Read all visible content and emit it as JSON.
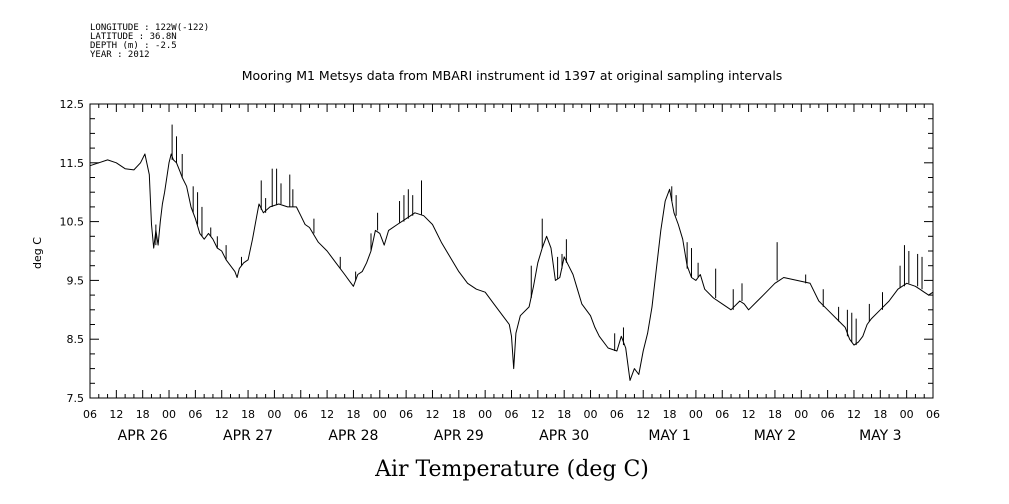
{
  "header": {
    "meta_lines": [
      "LONGITUDE : 122W(-122)",
      "LATITUDE : 36.8N",
      "DEPTH (m) : -2.5",
      "YEAR : 2012"
    ]
  },
  "chart_data": {
    "type": "line",
    "title": "Mooring M1 Metsys data from MBARI instrument id 1397 at original sampling intervals",
    "xlabel": "Air Temperature (deg C)",
    "ylabel": "deg C",
    "ylim": [
      7.5,
      12.5
    ],
    "yticks": [
      "7.5",
      "8.5",
      "9.5",
      "10.5",
      "11.5",
      "12.5"
    ],
    "x_units": "hours since APR 26 00:00 (2012)",
    "xlim": [
      -18,
      174
    ],
    "hour_ticks": [
      {
        "h": -18,
        "label": "06"
      },
      {
        "h": -12,
        "label": "12"
      },
      {
        "h": -6,
        "label": "18"
      },
      {
        "h": 0,
        "label": "00"
      },
      {
        "h": 6,
        "label": "06"
      },
      {
        "h": 12,
        "label": "12"
      },
      {
        "h": 18,
        "label": "18"
      },
      {
        "h": 24,
        "label": "00"
      },
      {
        "h": 30,
        "label": "06"
      },
      {
        "h": 36,
        "label": "12"
      },
      {
        "h": 42,
        "label": "18"
      },
      {
        "h": 48,
        "label": "00"
      },
      {
        "h": 54,
        "label": "06"
      },
      {
        "h": 60,
        "label": "12"
      },
      {
        "h": 66,
        "label": "18"
      },
      {
        "h": 72,
        "label": "00"
      },
      {
        "h": 78,
        "label": "06"
      },
      {
        "h": 84,
        "label": "12"
      },
      {
        "h": 90,
        "label": "18"
      },
      {
        "h": 96,
        "label": "00"
      },
      {
        "h": 102,
        "label": "06"
      },
      {
        "h": 108,
        "label": "12"
      },
      {
        "h": 114,
        "label": "18"
      },
      {
        "h": 120,
        "label": "00"
      },
      {
        "h": 126,
        "label": "06"
      },
      {
        "h": 132,
        "label": "12"
      },
      {
        "h": 138,
        "label": "18"
      },
      {
        "h": 144,
        "label": "00"
      },
      {
        "h": 150,
        "label": "06"
      },
      {
        "h": 156,
        "label": "12"
      },
      {
        "h": 162,
        "label": "18"
      },
      {
        "h": 168,
        "label": "00"
      },
      {
        "h": 174,
        "label": "06"
      }
    ],
    "day_labels": [
      {
        "h": -6,
        "label": "APR 26"
      },
      {
        "h": 18,
        "label": "APR 27"
      },
      {
        "h": 42,
        "label": "APR 28"
      },
      {
        "h": 66,
        "label": "APR 29"
      },
      {
        "h": 90,
        "label": "APR 30"
      },
      {
        "h": 114,
        "label": "MAY  1"
      },
      {
        "h": 138,
        "label": "MAY  2"
      },
      {
        "h": 162,
        "label": "MAY  3"
      }
    ],
    "series": [
      {
        "color": "#000000",
        "points": [
          [
            -18,
            11.45
          ],
          [
            -16,
            11.5
          ],
          [
            -14,
            11.55
          ],
          [
            -12,
            11.5
          ],
          [
            -10,
            11.4
          ],
          [
            -8,
            11.38
          ],
          [
            -6.5,
            11.5
          ],
          [
            -5.5,
            11.65
          ],
          [
            -4.5,
            11.3
          ],
          [
            -4,
            10.45
          ],
          [
            -3.5,
            10.05
          ],
          [
            -3,
            10.35
          ],
          [
            -2.5,
            10.1
          ],
          [
            -2,
            10.5
          ],
          [
            -1.5,
            10.8
          ],
          [
            -1,
            11.0
          ],
          [
            0,
            11.5
          ],
          [
            0.5,
            11.65
          ],
          [
            1,
            11.55
          ],
          [
            1.7,
            11.5
          ],
          [
            2.5,
            11.35
          ],
          [
            3,
            11.25
          ],
          [
            4,
            11.1
          ],
          [
            5,
            10.75
          ],
          [
            6,
            10.55
          ],
          [
            7,
            10.3
          ],
          [
            8,
            10.2
          ],
          [
            9,
            10.3
          ],
          [
            10,
            10.2
          ],
          [
            11,
            10.05
          ],
          [
            12,
            10.0
          ],
          [
            13,
            9.85
          ],
          [
            14,
            9.75
          ],
          [
            15,
            9.65
          ],
          [
            15.5,
            9.55
          ],
          [
            16,
            9.7
          ],
          [
            17,
            9.8
          ],
          [
            18,
            9.85
          ],
          [
            19,
            10.2
          ],
          [
            20,
            10.6
          ],
          [
            20.5,
            10.8
          ],
          [
            21.5,
            10.65
          ],
          [
            23,
            10.75
          ],
          [
            25,
            10.8
          ],
          [
            27,
            10.75
          ],
          [
            29,
            10.75
          ],
          [
            30,
            10.6
          ],
          [
            31,
            10.45
          ],
          [
            32,
            10.4
          ],
          [
            34,
            10.15
          ],
          [
            36,
            10.0
          ],
          [
            38,
            9.8
          ],
          [
            40,
            9.6
          ],
          [
            41,
            9.5
          ],
          [
            42,
            9.4
          ],
          [
            43,
            9.6
          ],
          [
            44,
            9.65
          ],
          [
            45,
            9.8
          ],
          [
            46,
            10.0
          ],
          [
            47,
            10.35
          ],
          [
            48,
            10.3
          ],
          [
            49,
            10.1
          ],
          [
            50,
            10.35
          ],
          [
            52,
            10.45
          ],
          [
            54,
            10.55
          ],
          [
            56,
            10.65
          ],
          [
            58,
            10.6
          ],
          [
            60,
            10.45
          ],
          [
            62,
            10.15
          ],
          [
            64,
            9.9
          ],
          [
            66,
            9.65
          ],
          [
            68,
            9.45
          ],
          [
            70,
            9.35
          ],
          [
            72,
            9.3
          ],
          [
            74,
            9.1
          ],
          [
            76,
            8.9
          ],
          [
            77.5,
            8.75
          ],
          [
            78,
            8.55
          ],
          [
            78.5,
            8.0
          ],
          [
            79,
            8.6
          ],
          [
            80,
            8.9
          ],
          [
            82,
            9.05
          ],
          [
            83,
            9.4
          ],
          [
            84,
            9.8
          ],
          [
            85,
            10.05
          ],
          [
            86,
            10.25
          ],
          [
            87,
            10.05
          ],
          [
            88,
            9.5
          ],
          [
            89,
            9.55
          ],
          [
            90,
            9.9
          ],
          [
            91,
            9.75
          ],
          [
            92,
            9.6
          ],
          [
            93,
            9.35
          ],
          [
            94,
            9.1
          ],
          [
            96,
            8.9
          ],
          [
            97,
            8.7
          ],
          [
            98,
            8.55
          ],
          [
            100,
            8.35
          ],
          [
            102,
            8.3
          ],
          [
            103,
            8.55
          ],
          [
            104,
            8.35
          ],
          [
            105,
            7.8
          ],
          [
            106,
            8.0
          ],
          [
            107,
            7.9
          ],
          [
            108,
            8.3
          ],
          [
            109,
            8.6
          ],
          [
            110,
            9.05
          ],
          [
            111,
            9.7
          ],
          [
            112,
            10.35
          ],
          [
            113,
            10.85
          ],
          [
            114,
            11.05
          ],
          [
            115,
            10.65
          ],
          [
            116,
            10.45
          ],
          [
            117,
            10.2
          ],
          [
            118,
            9.75
          ],
          [
            119,
            9.55
          ],
          [
            120,
            9.5
          ],
          [
            121,
            9.6
          ],
          [
            122,
            9.35
          ],
          [
            124,
            9.2
          ],
          [
            126,
            9.1
          ],
          [
            128,
            9.0
          ],
          [
            130,
            9.15
          ],
          [
            131,
            9.1
          ],
          [
            132,
            9.0
          ],
          [
            134,
            9.15
          ],
          [
            136,
            9.3
          ],
          [
            138,
            9.45
          ],
          [
            139,
            9.5
          ],
          [
            140,
            9.55
          ],
          [
            143,
            9.5
          ],
          [
            146,
            9.45
          ],
          [
            148,
            9.15
          ],
          [
            150,
            9.0
          ],
          [
            152,
            8.85
          ],
          [
            154,
            8.7
          ],
          [
            155,
            8.5
          ],
          [
            156,
            8.4
          ],
          [
            157,
            8.45
          ],
          [
            158,
            8.55
          ],
          [
            159,
            8.75
          ],
          [
            160,
            8.85
          ],
          [
            162,
            9.0
          ],
          [
            164,
            9.15
          ],
          [
            166,
            9.35
          ],
          [
            168,
            9.45
          ],
          [
            170,
            9.4
          ],
          [
            171,
            9.35
          ],
          [
            172,
            9.3
          ],
          [
            173,
            9.25
          ],
          [
            174,
            9.3
          ]
        ]
      }
    ],
    "spikes": [
      [
        -3,
        10.45,
        10.1
      ],
      [
        0.7,
        11.55,
        12.15
      ],
      [
        1.7,
        11.5,
        11.95
      ],
      [
        3,
        11.25,
        11.65
      ],
      [
        5.5,
        10.65,
        11.1
      ],
      [
        6.5,
        10.45,
        11.0
      ],
      [
        7.5,
        10.25,
        10.75
      ],
      [
        9.5,
        10.25,
        10.4
      ],
      [
        11,
        10.05,
        10.25
      ],
      [
        13,
        9.85,
        10.1
      ],
      [
        16.5,
        9.75,
        9.9
      ],
      [
        21,
        10.7,
        11.2
      ],
      [
        22,
        10.65,
        10.9
      ],
      [
        23.5,
        10.75,
        11.4
      ],
      [
        24.5,
        10.78,
        11.4
      ],
      [
        25.5,
        10.8,
        11.15
      ],
      [
        27.5,
        10.75,
        11.3
      ],
      [
        28.2,
        10.75,
        11.05
      ],
      [
        33,
        10.3,
        10.55
      ],
      [
        39,
        9.7,
        9.9
      ],
      [
        42.5,
        9.5,
        9.65
      ],
      [
        46,
        10.0,
        10.3
      ],
      [
        47.5,
        10.35,
        10.65
      ],
      [
        52.5,
        10.48,
        10.85
      ],
      [
        53.5,
        10.5,
        10.95
      ],
      [
        54.5,
        10.55,
        11.05
      ],
      [
        55.5,
        10.6,
        10.95
      ],
      [
        57.5,
        10.62,
        11.2
      ],
      [
        82.5,
        9.2,
        9.75
      ],
      [
        85,
        10.05,
        10.55
      ],
      [
        88.5,
        9.52,
        9.9
      ],
      [
        89.5,
        9.7,
        9.95
      ],
      [
        90.5,
        9.8,
        10.2
      ],
      [
        101.5,
        8.3,
        8.6
      ],
      [
        103.5,
        8.4,
        8.7
      ],
      [
        114.5,
        10.85,
        11.1
      ],
      [
        115.5,
        10.6,
        10.95
      ],
      [
        118,
        9.7,
        10.15
      ],
      [
        119,
        9.55,
        10.05
      ],
      [
        120.5,
        9.55,
        9.8
      ],
      [
        124.5,
        9.2,
        9.7
      ],
      [
        128.5,
        9.0,
        9.35
      ],
      [
        130.5,
        9.15,
        9.45
      ],
      [
        138.5,
        9.5,
        10.15
      ],
      [
        145,
        9.45,
        9.6
      ],
      [
        149,
        9.05,
        9.35
      ],
      [
        152.5,
        8.8,
        9.05
      ],
      [
        154.5,
        8.55,
        9.0
      ],
      [
        155.5,
        8.45,
        8.95
      ],
      [
        156.5,
        8.4,
        8.85
      ],
      [
        159.5,
        8.8,
        9.1
      ],
      [
        162.5,
        9.0,
        9.3
      ],
      [
        166.5,
        9.37,
        9.75
      ],
      [
        167.5,
        9.4,
        10.1
      ],
      [
        168.5,
        9.45,
        10.0
      ],
      [
        170.5,
        9.4,
        9.95
      ],
      [
        171.5,
        9.35,
        9.9
      ]
    ]
  }
}
